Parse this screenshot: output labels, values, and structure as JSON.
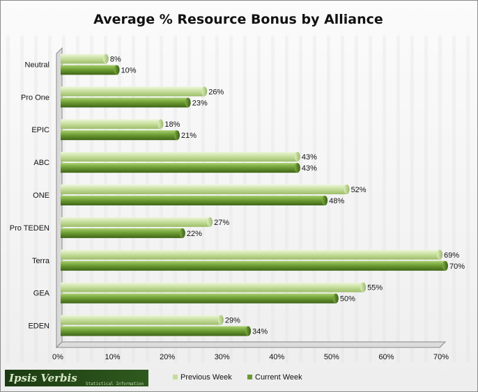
{
  "chart_data": {
    "type": "bar",
    "orientation": "horizontal",
    "title": "Average % Resource Bonus by Alliance",
    "xlabel": "",
    "ylabel": "",
    "categories": [
      "Neutral",
      "Pro One",
      "EPIC",
      "ABC",
      "ONE",
      "Pro TEDEN",
      "Terra",
      "GEA",
      "EDEN"
    ],
    "series": [
      {
        "name": "Previous Week",
        "values": [
          8,
          26,
          18,
          43,
          52,
          27,
          69,
          55,
          29
        ]
      },
      {
        "name": "Current Week",
        "values": [
          10,
          23,
          21,
          43,
          48,
          22,
          70,
          50,
          34
        ]
      }
    ],
    "xlim": [
      0,
      70
    ],
    "ticks": [
      "0%",
      "10%",
      "20%",
      "30%",
      "40%",
      "50%",
      "60%",
      "70%"
    ],
    "value_suffix": "%",
    "legend": "bottom",
    "grid": false,
    "colors": {
      "previous": "#c5dd9a",
      "current": "#6b9a32",
      "frame": "#8a8a8a"
    }
  },
  "logo": {
    "name": "Ipsis Verbis",
    "tagline": "Statistical Information"
  }
}
